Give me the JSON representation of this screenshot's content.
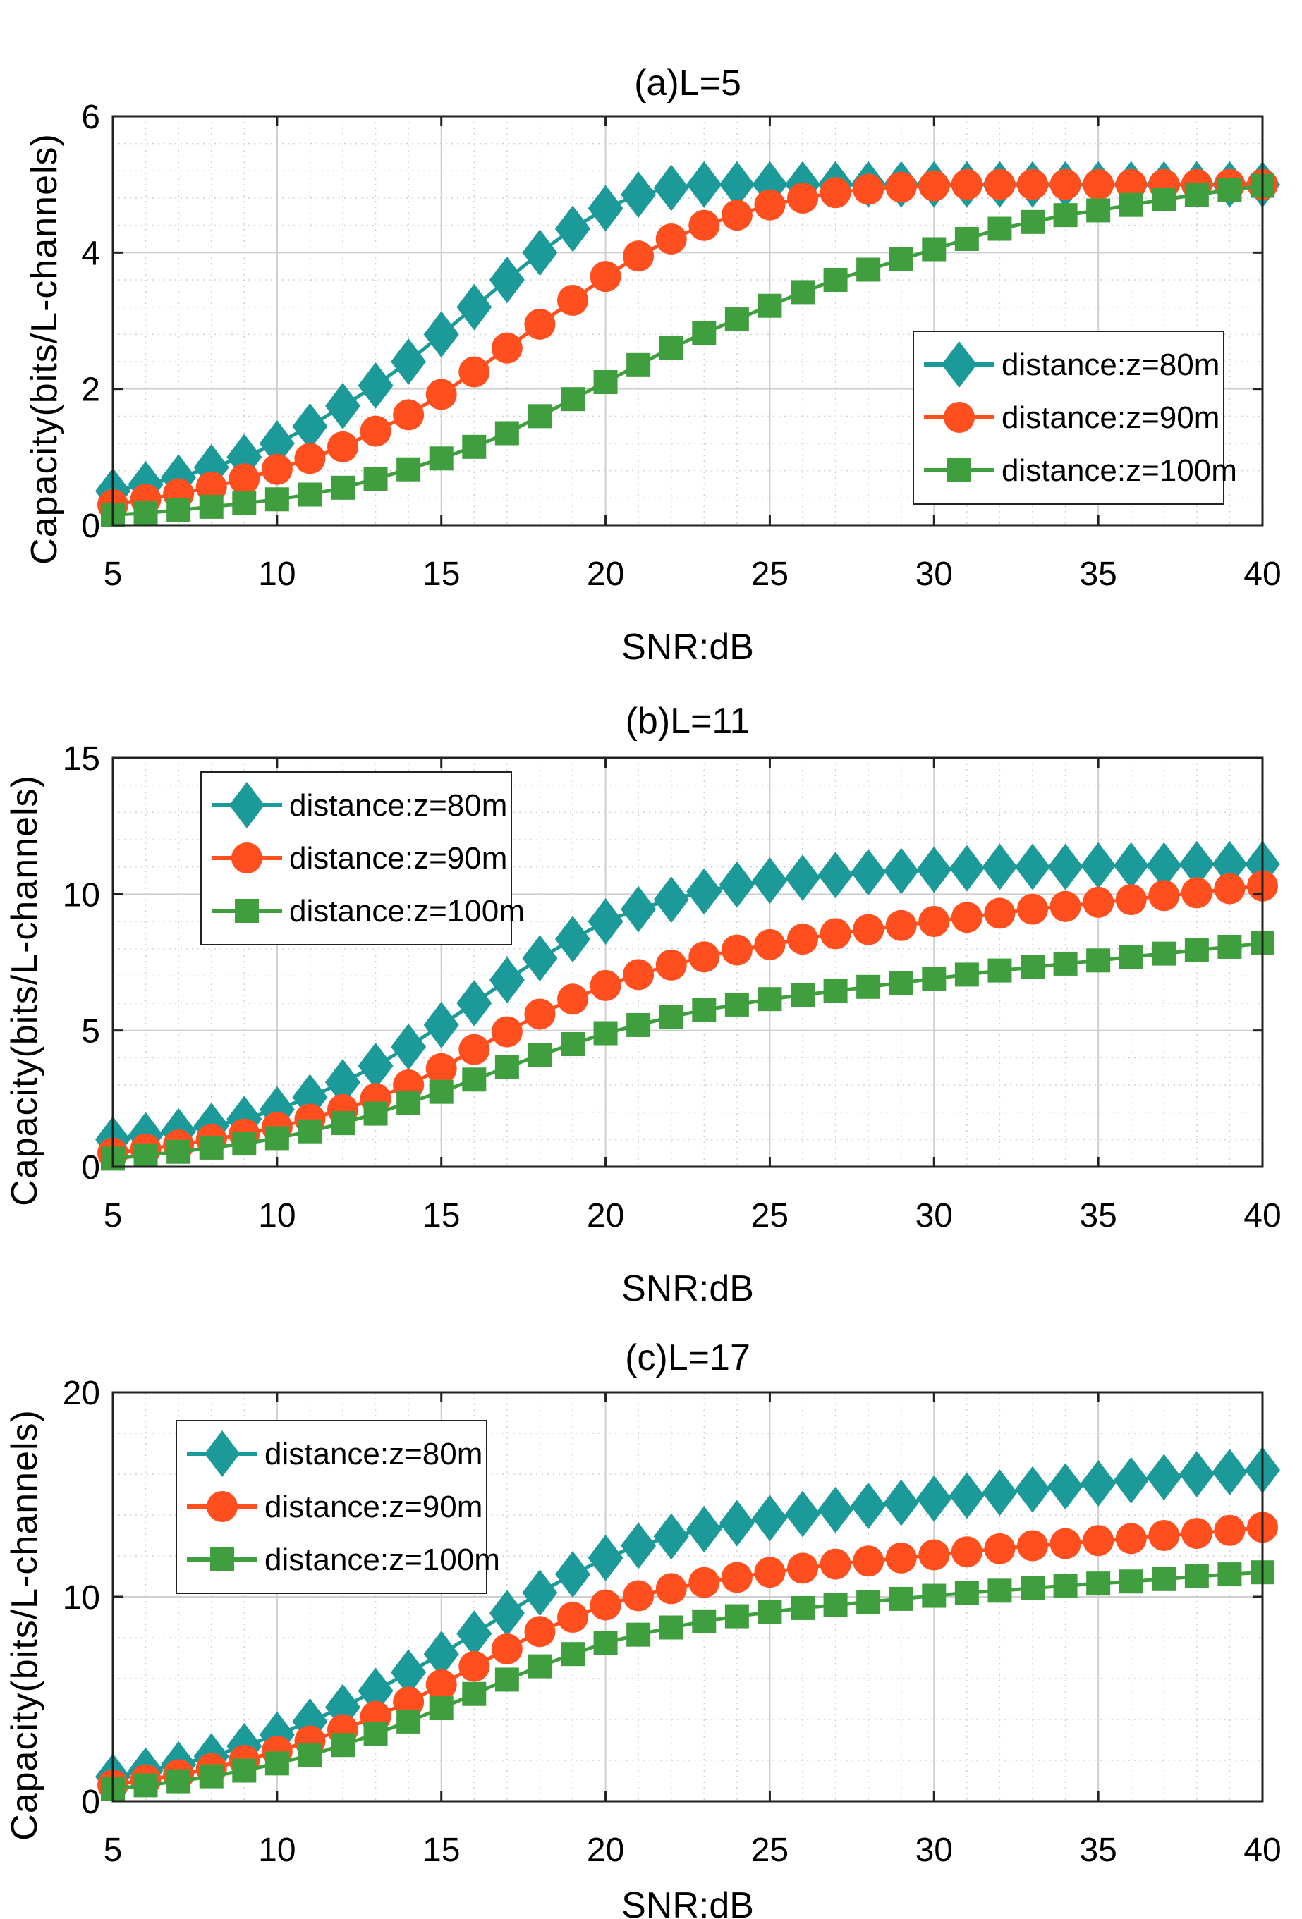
{
  "colors": {
    "d80": "#1c9a9a",
    "d90": "#ff4f1f",
    "d100": "#3f9f3f",
    "grid": "#d2d2d2",
    "axis": "#222222"
  },
  "chart_data": [
    {
      "type": "line",
      "title": "(a)L=5",
      "xlabel": "SNR:dB",
      "ylabel": "Capacity(bits/L-channels)",
      "xlim": [
        5,
        40
      ],
      "ylim": [
        0,
        6
      ],
      "xticks": [
        "5",
        "10",
        "15",
        "20",
        "25",
        "30",
        "35",
        "40"
      ],
      "yticks": [
        "0",
        "2",
        "4",
        "6"
      ],
      "grid": true,
      "legend_position": "right-middle",
      "x": [
        5,
        6,
        7,
        8,
        9,
        10,
        11,
        12,
        13,
        14,
        15,
        16,
        17,
        18,
        19,
        20,
        21,
        22,
        23,
        24,
        25,
        26,
        27,
        28,
        29,
        30,
        31,
        32,
        33,
        34,
        35,
        36,
        37,
        38,
        39,
        40
      ],
      "series": [
        {
          "name": "distance:z=80m",
          "marker": "diamond",
          "color": "#1c9a9a",
          "values": [
            0.5,
            0.6,
            0.7,
            0.85,
            1.0,
            1.2,
            1.45,
            1.75,
            2.05,
            2.4,
            2.8,
            3.2,
            3.6,
            4.0,
            4.35,
            4.65,
            4.85,
            4.95,
            5.0,
            5.0,
            5.0,
            5.0,
            5.0,
            5.0,
            5.0,
            5.0,
            5.0,
            5.0,
            5.0,
            5.0,
            5.0,
            5.0,
            5.0,
            5.0,
            5.0,
            5.0
          ]
        },
        {
          "name": "distance:z=90m",
          "marker": "circle",
          "color": "#ff4f1f",
          "values": [
            0.3,
            0.38,
            0.46,
            0.56,
            0.68,
            0.82,
            0.98,
            1.15,
            1.38,
            1.62,
            1.92,
            2.25,
            2.6,
            2.95,
            3.3,
            3.65,
            3.95,
            4.2,
            4.4,
            4.55,
            4.7,
            4.8,
            4.88,
            4.93,
            4.96,
            4.98,
            5.0,
            5.0,
            5.0,
            5.0,
            5.0,
            5.0,
            5.0,
            5.0,
            5.0,
            5.0
          ]
        },
        {
          "name": "distance:z=100m",
          "marker": "square",
          "color": "#3f9f3f",
          "values": [
            0.15,
            0.18,
            0.22,
            0.27,
            0.32,
            0.38,
            0.45,
            0.55,
            0.68,
            0.82,
            0.98,
            1.15,
            1.35,
            1.6,
            1.85,
            2.1,
            2.35,
            2.6,
            2.82,
            3.02,
            3.22,
            3.42,
            3.6,
            3.75,
            3.9,
            4.05,
            4.2,
            4.35,
            4.45,
            4.55,
            4.62,
            4.7,
            4.78,
            4.85,
            4.92,
            4.98
          ]
        }
      ]
    },
    {
      "type": "line",
      "title": "(b)L=11",
      "xlabel": "SNR:dB",
      "ylabel": "Capacity(bits/L-channels)",
      "xlim": [
        5,
        40
      ],
      "ylim": [
        0,
        15
      ],
      "xticks": [
        "5",
        "10",
        "15",
        "20",
        "25",
        "30",
        "35",
        "40"
      ],
      "yticks": [
        "0",
        "5",
        "10",
        "15"
      ],
      "grid": true,
      "legend_position": "top-left",
      "x": [
        5,
        6,
        7,
        8,
        9,
        10,
        11,
        12,
        13,
        14,
        15,
        16,
        17,
        18,
        19,
        20,
        21,
        22,
        23,
        24,
        25,
        26,
        27,
        28,
        29,
        30,
        31,
        32,
        33,
        34,
        35,
        36,
        37,
        38,
        39,
        40
      ],
      "series": [
        {
          "name": "distance:z=80m",
          "marker": "diamond",
          "color": "#1c9a9a",
          "values": [
            1.0,
            1.15,
            1.3,
            1.5,
            1.75,
            2.1,
            2.55,
            3.1,
            3.7,
            4.4,
            5.2,
            6.0,
            6.85,
            7.65,
            8.35,
            9.0,
            9.45,
            9.8,
            10.1,
            10.35,
            10.5,
            10.6,
            10.7,
            10.8,
            10.85,
            10.9,
            10.95,
            11.0,
            11.0,
            11.0,
            11.05,
            11.05,
            11.05,
            11.1,
            11.1,
            11.1
          ]
        },
        {
          "name": "distance:z=90m",
          "marker": "circle",
          "color": "#ff4f1f",
          "values": [
            0.5,
            0.65,
            0.8,
            1.0,
            1.2,
            1.45,
            1.75,
            2.1,
            2.5,
            3.0,
            3.6,
            4.3,
            4.95,
            5.6,
            6.15,
            6.65,
            7.05,
            7.4,
            7.7,
            7.95,
            8.15,
            8.35,
            8.55,
            8.7,
            8.85,
            9.0,
            9.15,
            9.3,
            9.45,
            9.55,
            9.7,
            9.8,
            9.95,
            10.05,
            10.2,
            10.3
          ]
        },
        {
          "name": "distance:z=100m",
          "marker": "square",
          "color": "#3f9f3f",
          "values": [
            0.3,
            0.42,
            0.55,
            0.7,
            0.85,
            1.05,
            1.3,
            1.6,
            1.95,
            2.35,
            2.75,
            3.2,
            3.65,
            4.1,
            4.5,
            4.9,
            5.2,
            5.5,
            5.75,
            5.95,
            6.15,
            6.3,
            6.45,
            6.6,
            6.75,
            6.9,
            7.05,
            7.2,
            7.32,
            7.45,
            7.57,
            7.7,
            7.82,
            7.95,
            8.07,
            8.2
          ]
        }
      ]
    },
    {
      "type": "line",
      "title": "(c)L=17",
      "xlabel": "SNR:dB",
      "ylabel": "Capacity(bits/L-channels)",
      "xlim": [
        5,
        40
      ],
      "ylim": [
        0,
        20
      ],
      "xticks": [
        "5",
        "10",
        "15",
        "20",
        "25",
        "30",
        "35",
        "40"
      ],
      "yticks": [
        "0",
        "10",
        "20"
      ],
      "grid": true,
      "legend_position": "top-left",
      "x": [
        5,
        6,
        7,
        8,
        9,
        10,
        11,
        12,
        13,
        14,
        15,
        16,
        17,
        18,
        19,
        20,
        21,
        22,
        23,
        24,
        25,
        26,
        27,
        28,
        29,
        30,
        31,
        32,
        33,
        34,
        35,
        36,
        37,
        38,
        39,
        40
      ],
      "series": [
        {
          "name": "distance:z=80m",
          "marker": "diamond",
          "color": "#1c9a9a",
          "values": [
            1.2,
            1.5,
            1.8,
            2.2,
            2.7,
            3.25,
            3.9,
            4.6,
            5.4,
            6.3,
            7.2,
            8.2,
            9.2,
            10.2,
            11.1,
            11.9,
            12.5,
            12.95,
            13.3,
            13.6,
            13.85,
            14.05,
            14.25,
            14.45,
            14.6,
            14.8,
            14.95,
            15.1,
            15.25,
            15.4,
            15.55,
            15.7,
            15.85,
            16.0,
            16.1,
            16.2
          ]
        },
        {
          "name": "distance:z=90m",
          "marker": "circle",
          "color": "#ff4f1f",
          "values": [
            0.8,
            1.05,
            1.3,
            1.6,
            2.0,
            2.45,
            2.95,
            3.5,
            4.15,
            4.85,
            5.7,
            6.6,
            7.45,
            8.3,
            9.0,
            9.6,
            10.05,
            10.4,
            10.7,
            10.95,
            11.2,
            11.4,
            11.6,
            11.75,
            11.9,
            12.05,
            12.2,
            12.35,
            12.5,
            12.6,
            12.75,
            12.85,
            13.0,
            13.1,
            13.25,
            13.4
          ]
        },
        {
          "name": "distance:z=100m",
          "marker": "square",
          "color": "#3f9f3f",
          "values": [
            0.6,
            0.78,
            0.98,
            1.22,
            1.5,
            1.85,
            2.25,
            2.75,
            3.3,
            3.9,
            4.55,
            5.25,
            5.95,
            6.6,
            7.2,
            7.75,
            8.15,
            8.5,
            8.8,
            9.05,
            9.25,
            9.45,
            9.6,
            9.75,
            9.9,
            10.05,
            10.2,
            10.3,
            10.42,
            10.55,
            10.65,
            10.75,
            10.87,
            11.0,
            11.1,
            11.2
          ]
        }
      ]
    }
  ]
}
